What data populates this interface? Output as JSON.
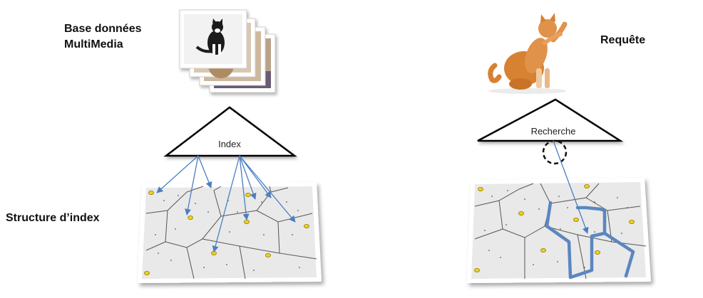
{
  "labels": {
    "db_line1": "Base données",
    "db_line2": "MultiMedia",
    "query": "Requête",
    "structure": "Structure d’index"
  },
  "triangles": {
    "left": "Index",
    "right": "Recherche"
  },
  "colors": {
    "arrow": "#4a7fc1",
    "path": "#5b86c0",
    "site_fill": "#f1d21b",
    "site_stroke": "#8a7400",
    "panel_fill": "#e9e9e9",
    "cell_edge": "#555555",
    "cat_orange": "#d68232"
  }
}
